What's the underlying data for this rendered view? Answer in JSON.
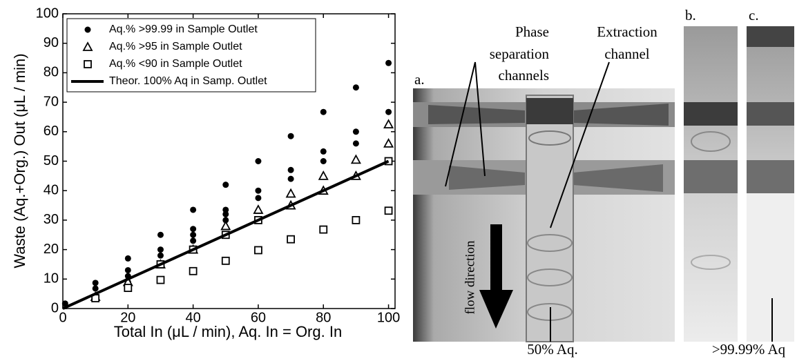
{
  "chart_data": {
    "type": "scatter",
    "x_label": "Total In (μL / min), Aq. In = Org. In",
    "y_label": "Waste (Aq.+Org.) Out (μL / min)",
    "xlim": [
      0,
      102
    ],
    "ylim": [
      0,
      100
    ],
    "xticks": [
      0,
      20,
      40,
      60,
      80,
      100
    ],
    "yticks": [
      0,
      10,
      20,
      30,
      40,
      50,
      60,
      70,
      80,
      90,
      100
    ],
    "legend": "upper left",
    "series": [
      {
        "name": "Aq.% >99.99 in Sample Outlet",
        "marker": "circle",
        "color": "#000000",
        "x": [
          0.7,
          10,
          10,
          20,
          20,
          20,
          20,
          30,
          30,
          30,
          40,
          40,
          40,
          40,
          50,
          50,
          50,
          50,
          60,
          60,
          60,
          70,
          70,
          70,
          80,
          80,
          80,
          90,
          90,
          90,
          100,
          100
        ],
        "values": [
          1.7,
          8.7,
          6.8,
          17,
          13,
          11,
          9,
          25,
          20,
          18,
          33.5,
          27,
          25,
          23,
          42,
          33.5,
          32,
          30,
          50,
          40,
          37.5,
          58.5,
          47,
          44,
          66.7,
          53.3,
          50,
          75,
          60,
          56,
          83.3,
          66.7
        ]
      },
      {
        "name": "Aq.% >95  in Sample Outlet",
        "marker": "triangle",
        "color": "#000000",
        "x": [
          10,
          20,
          30,
          40,
          50,
          60,
          70,
          70,
          80,
          80,
          90,
          90,
          100,
          100
        ],
        "values": [
          4,
          9,
          15,
          20,
          28,
          33.5,
          39,
          35,
          45,
          40,
          50.5,
          45,
          62.5,
          56
        ]
      },
      {
        "name": "Aq.% <90 in Sample Outlet",
        "marker": "square",
        "color": "#000000",
        "x": [
          10,
          20,
          30,
          30,
          40,
          40,
          50,
          50,
          60,
          60,
          70,
          80,
          90,
          100,
          100
        ],
        "values": [
          3.5,
          7,
          9.7,
          15,
          12.7,
          20,
          16.2,
          25,
          19.8,
          30,
          23.5,
          26.8,
          30,
          33.2,
          50
        ]
      },
      {
        "name": "Theor. 100% Aq in Samp. Outlet",
        "marker": "line",
        "color": "#000000",
        "x": [
          0,
          100
        ],
        "values": [
          0,
          50
        ]
      }
    ]
  },
  "photos": {
    "panels": [
      "a.",
      "b.",
      "c."
    ],
    "phase_label": [
      "Phase",
      "separation",
      "channels"
    ],
    "extraction_label": [
      "Extraction",
      "channel"
    ],
    "flow_label": "flow direction",
    "bottom_labels": [
      "50% Aq.",
      ">99.99% Aq"
    ]
  }
}
